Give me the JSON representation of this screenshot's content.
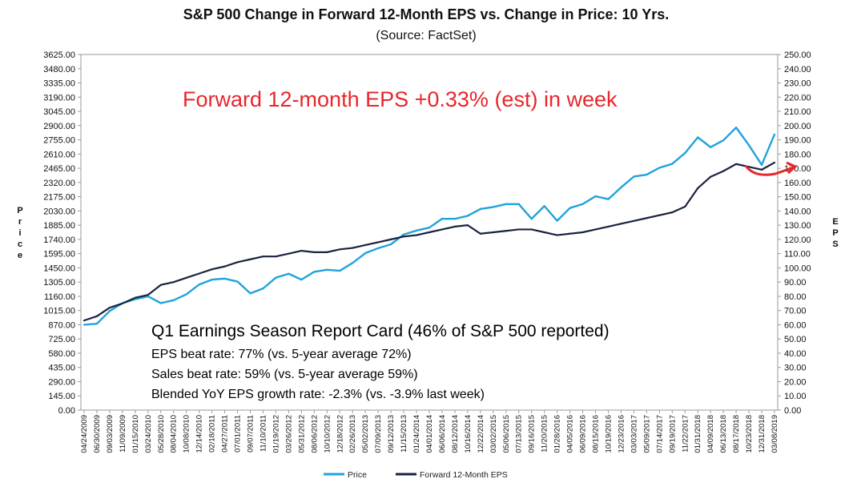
{
  "chart_data": {
    "type": "line",
    "title": "S&P 500 Change in Forward 12-Month EPS vs. Change in Price: 10 Yrs.",
    "subtitle": "(Source: FactSet)",
    "ylabel_left": "Price",
    "ylabel_right": "EPS",
    "ylim_left": [
      0,
      3625
    ],
    "ylim_right": [
      0,
      250
    ],
    "y_ticks_left": [
      "3625.00",
      "3480.00",
      "3335.00",
      "3190.00",
      "3045.00",
      "2900.00",
      "2755.00",
      "2610.00",
      "2465.00",
      "2320.00",
      "2175.00",
      "2030.00",
      "1885.00",
      "1740.00",
      "1595.00",
      "1450.00",
      "1305.00",
      "1160.00",
      "1015.00",
      "870.00",
      "725.00",
      "580.00",
      "435.00",
      "290.00",
      "145.00",
      "0.00"
    ],
    "y_ticks_right": [
      "250.00",
      "240.00",
      "230.00",
      "220.00",
      "210.00",
      "200.00",
      "190.00",
      "180.00",
      "170.00",
      "160.00",
      "150.00",
      "140.00",
      "130.00",
      "120.00",
      "110.00",
      "100.00",
      "90.00",
      "80.00",
      "70.00",
      "60.00",
      "50.00",
      "40.00",
      "30.00",
      "20.00",
      "10.00",
      "0.00"
    ],
    "x_ticks": [
      "04/24/2009",
      "06/30/2009",
      "09/03/2009",
      "11/09/2009",
      "01/15/2010",
      "03/24/2010",
      "05/28/2010",
      "08/04/2010",
      "10/08/2010",
      "12/14/2010",
      "02/18/2011",
      "04/27/2011",
      "07/01/2011",
      "09/07/2011",
      "11/10/2011",
      "01/19/2012",
      "03/26/2012",
      "05/31/2012",
      "08/06/2012",
      "10/10/2012",
      "12/18/2012",
      "02/26/2013",
      "05/02/2013",
      "07/09/2013",
      "09/12/2013",
      "11/15/2013",
      "01/24/2014",
      "04/01/2014",
      "06/06/2014",
      "08/12/2014",
      "10/16/2014",
      "12/22/2014",
      "03/02/2015",
      "05/06/2015",
      "07/13/2015",
      "09/16/2015",
      "11/20/2015",
      "01/28/2016",
      "04/05/2016",
      "06/09/2016",
      "08/15/2016",
      "10/19/2016",
      "12/23/2016",
      "03/03/2017",
      "05/09/2017",
      "07/14/2017",
      "09/19/2017",
      "11/22/2017",
      "01/31/2018",
      "04/09/2018",
      "06/13/2018",
      "08/17/2018",
      "10/23/2018",
      "12/31/2018",
      "03/08/2019"
    ],
    "series": [
      {
        "name": "Price",
        "axis": "left",
        "color": "#1fa3dc",
        "values": [
          870,
          880,
          1010,
          1090,
          1130,
          1160,
          1090,
          1120,
          1180,
          1280,
          1330,
          1340,
          1310,
          1190,
          1240,
          1350,
          1390,
          1330,
          1410,
          1430,
          1420,
          1500,
          1600,
          1650,
          1690,
          1790,
          1830,
          1860,
          1950,
          1950,
          1980,
          2050,
          2070,
          2100,
          2100,
          1950,
          2080,
          1930,
          2060,
          2100,
          2180,
          2150,
          2270,
          2380,
          2400,
          2470,
          2510,
          2620,
          2780,
          2680,
          2750,
          2880,
          2700,
          2500,
          2810
        ]
      },
      {
        "name": "Forward 12-Month EPS",
        "axis": "right",
        "color": "#1a2340",
        "values": [
          63,
          66,
          72,
          75,
          79,
          81,
          88,
          90,
          93,
          96,
          99,
          101,
          104,
          106,
          108,
          108,
          110,
          112,
          111,
          111,
          113,
          114,
          116,
          118,
          120,
          122,
          123,
          125,
          127,
          129,
          130,
          124,
          125,
          126,
          127,
          127,
          125,
          123,
          124,
          125,
          127,
          129,
          131,
          133,
          135,
          137,
          139,
          143,
          156,
          164,
          168,
          173,
          171,
          169,
          174
        ]
      }
    ],
    "annotations": {
      "callout": "Forward 12-month EPS +0.33% (est) in week",
      "report_card_title": "Q1 Earnings Season Report Card (46% of S&P 500 reported)",
      "report_card_lines": [
        "EPS beat rate: 77% (vs. 5-year average 72%)",
        "Sales beat rate: 59% (vs. 5-year average 59%)",
        "Blended YoY EPS growth rate: -2.3% (vs. -3.9% last week)"
      ]
    },
    "legend": [
      "Price",
      "Forward 12-Month EPS"
    ],
    "grid": false,
    "legend_position": "bottom-center"
  }
}
